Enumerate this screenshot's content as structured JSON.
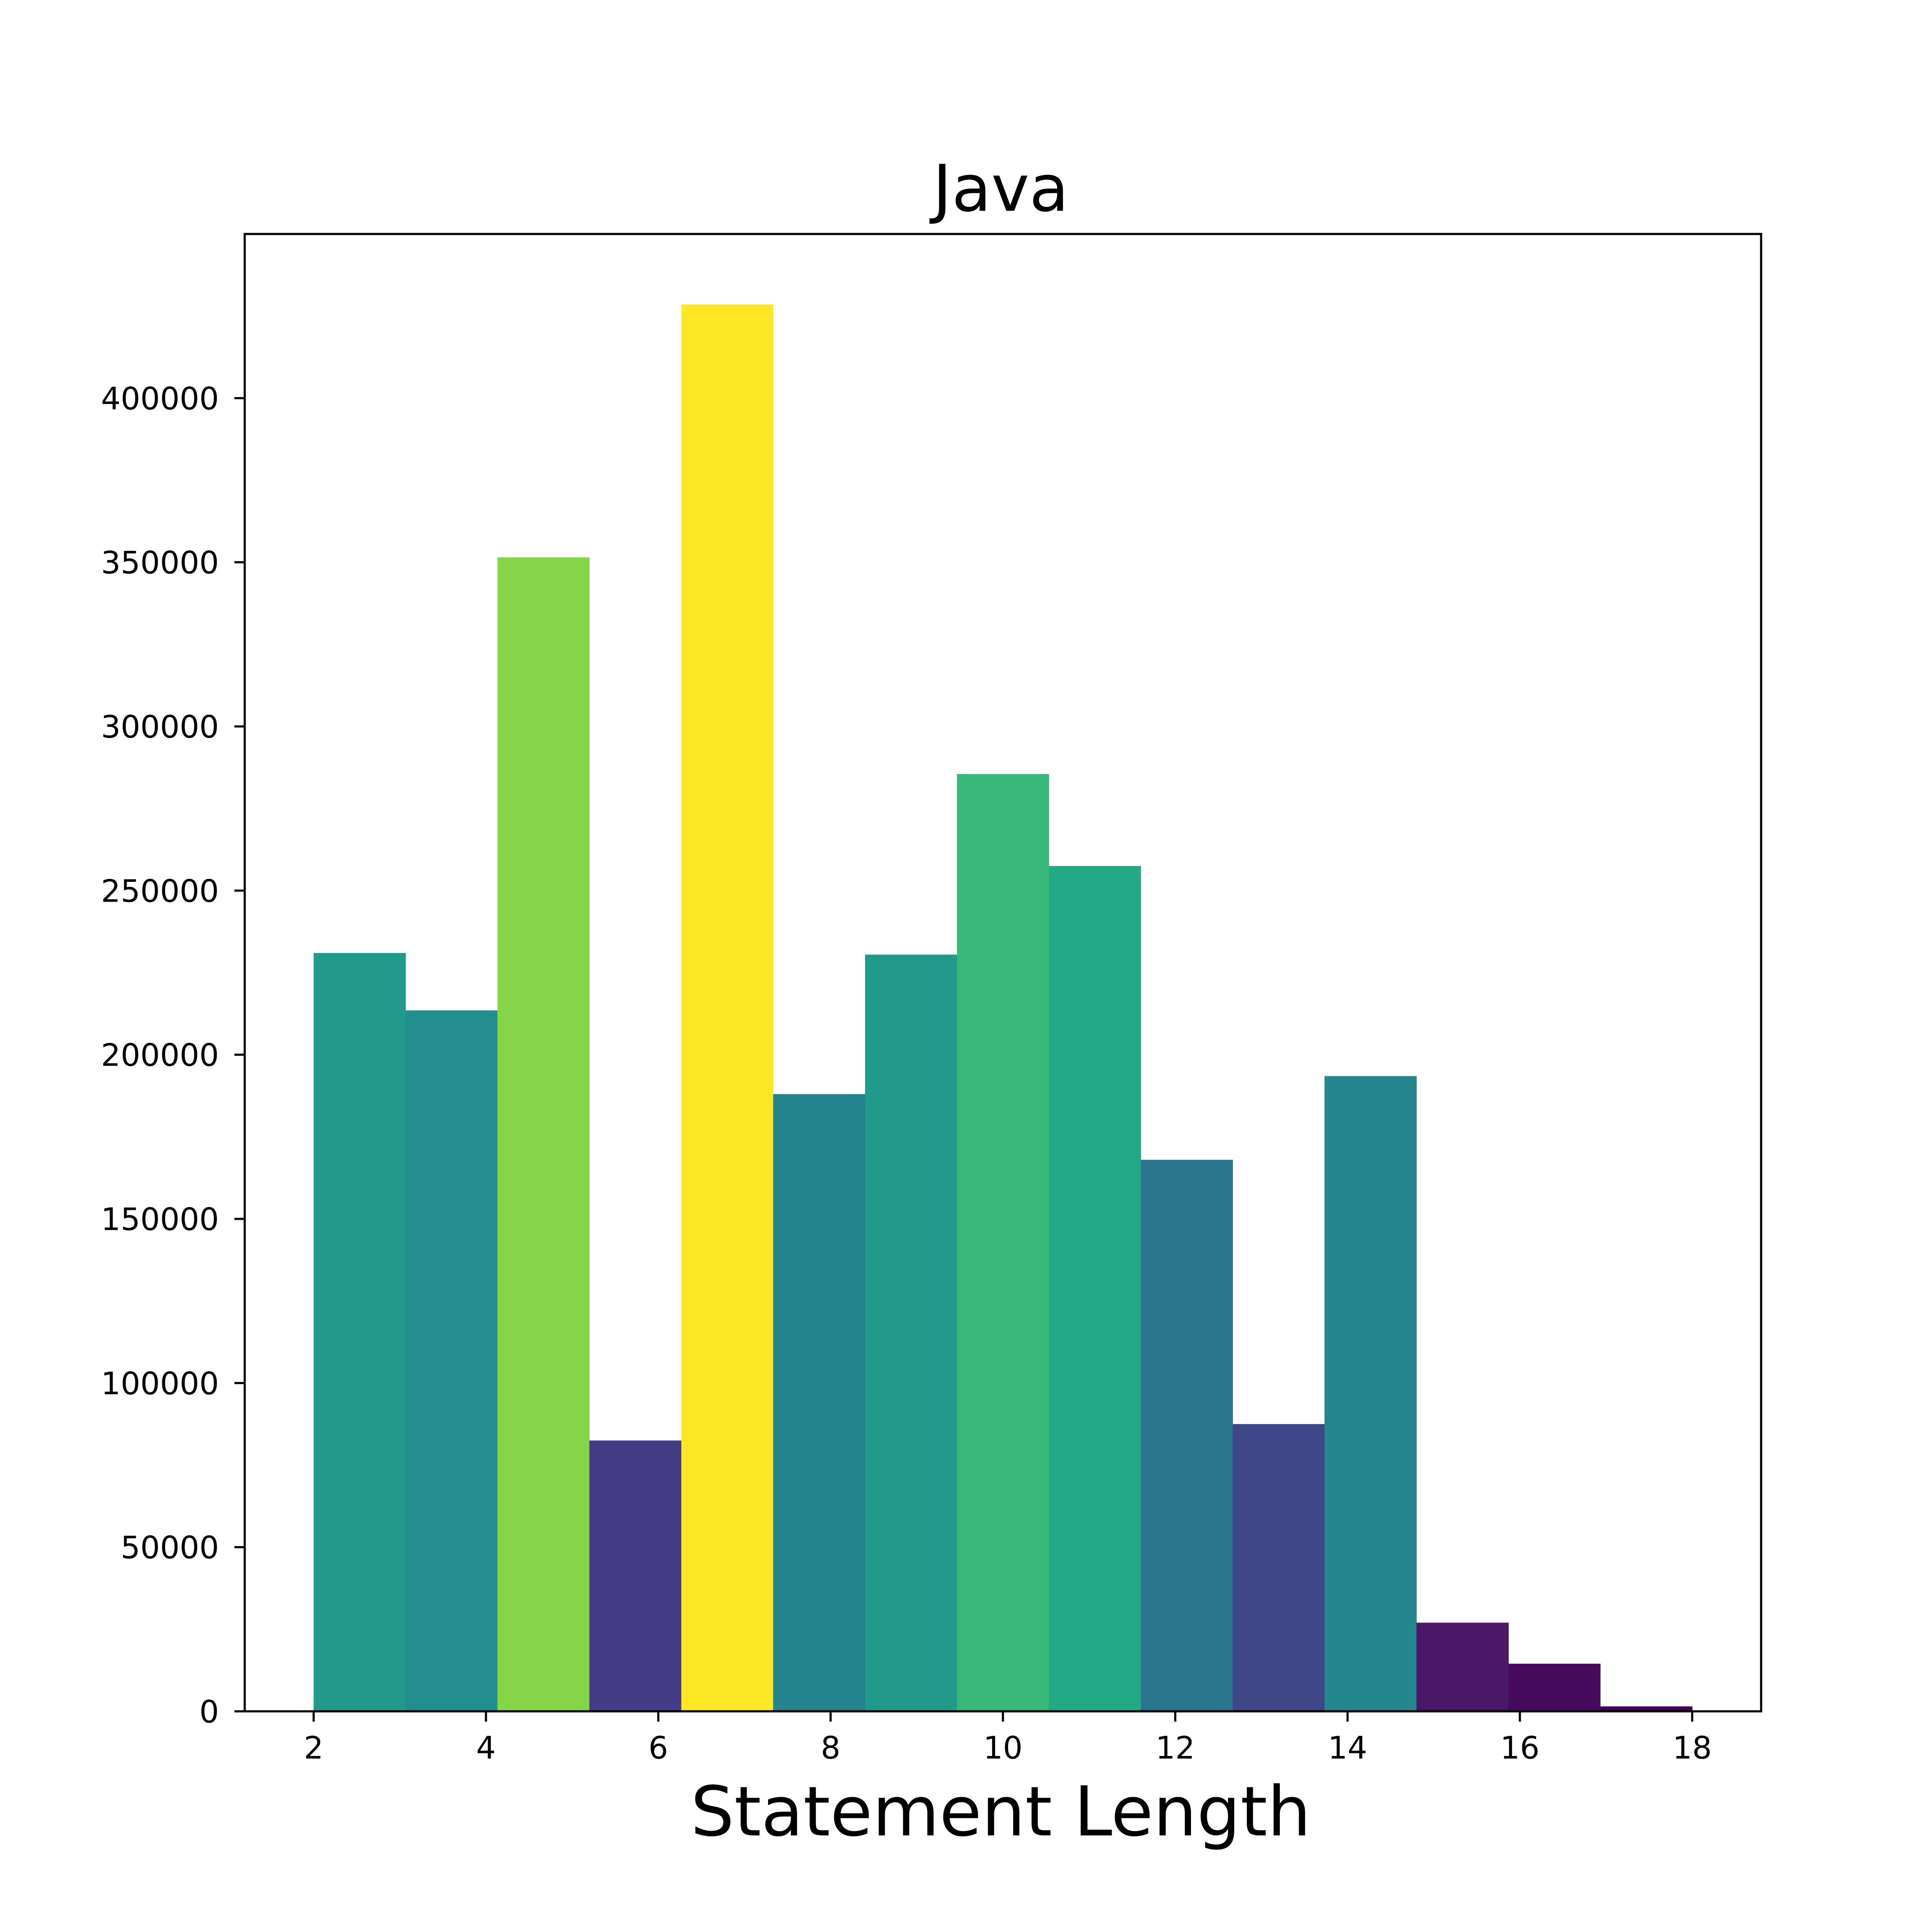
{
  "chart_data": {
    "type": "bar",
    "title": "Java",
    "xlabel": "Statement Length",
    "ylabel": "",
    "xlim": [
      1.2,
      18.8
    ],
    "ylim": [
      0,
      450000
    ],
    "xticks": [
      2,
      4,
      6,
      8,
      10,
      12,
      14,
      16,
      18
    ],
    "yticks": [
      0,
      50000,
      100000,
      150000,
      200000,
      250000,
      300000,
      350000,
      400000
    ],
    "grid": false,
    "legend": "none",
    "bins": [
      {
        "x0": 2.0,
        "x1": 3.067,
        "value": 231000,
        "color": "#21998b"
      },
      {
        "x0": 3.067,
        "x1": 4.133,
        "value": 213500,
        "color": "#238e8d"
      },
      {
        "x0": 4.133,
        "x1": 5.2,
        "value": 351500,
        "color": "#86d549"
      },
      {
        "x0": 5.2,
        "x1": 6.267,
        "value": 82500,
        "color": "#443c84"
      },
      {
        "x0": 6.267,
        "x1": 7.333,
        "value": 428500,
        "color": "#fde725"
      },
      {
        "x0": 7.333,
        "x1": 8.4,
        "value": 188000,
        "color": "#25838e"
      },
      {
        "x0": 8.4,
        "x1": 9.467,
        "value": 230500,
        "color": "#21998b"
      },
      {
        "x0": 9.467,
        "x1": 10.533,
        "value": 285500,
        "color": "#37b879"
      },
      {
        "x0": 10.533,
        "x1": 11.6,
        "value": 257500,
        "color": "#23a986"
      },
      {
        "x0": 11.6,
        "x1": 12.667,
        "value": 168000,
        "color": "#2a768e"
      },
      {
        "x0": 12.667,
        "x1": 13.733,
        "value": 87500,
        "color": "#3f4788"
      },
      {
        "x0": 13.733,
        "x1": 14.8,
        "value": 193500,
        "color": "#25868e"
      },
      {
        "x0": 14.8,
        "x1": 15.867,
        "value": 27000,
        "color": "#4a1769"
      },
      {
        "x0": 15.867,
        "x1": 16.933,
        "value": 14500,
        "color": "#470b5e"
      },
      {
        "x0": 16.933,
        "x1": 18.0,
        "value": 1500,
        "color": "#440154"
      }
    ]
  }
}
